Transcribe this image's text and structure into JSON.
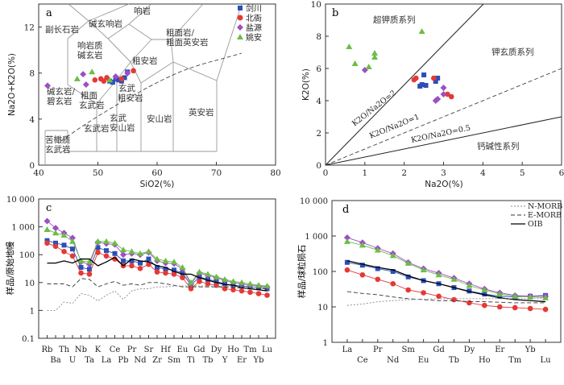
{
  "chart_data": [
    {
      "panel": "a",
      "type": "scatter",
      "xlabel": "SiO2(%)",
      "ylabel": "Na2O+K2O(%)",
      "xlim": [
        40,
        80
      ],
      "ylim": [
        0,
        14
      ],
      "xticks": [
        40,
        50,
        60,
        70,
        80
      ],
      "yticks": [
        0,
        4,
        8,
        12
      ],
      "legend_position": "top-right",
      "field_labels": [
        "响岩",
        "碱玄响岩",
        "副长石岩",
        "响岩质",
        "碱玄岩",
        "粗面岩/",
        "粗面英安岩",
        "粗安岩",
        "碱玄岩/",
        "碧玄岩",
        "粗面",
        "玄武岩",
        "玄武",
        "粗安岩",
        "玄武岩",
        "玄武",
        "安山岩",
        "安山岩",
        "英安岩",
        "苦橄质",
        "玄武岩"
      ],
      "series": [
        {
          "name": "剑川",
          "color": "#2b4fb8",
          "marker": "square",
          "x": [
            52,
            52.5,
            53,
            53.5,
            54,
            54.5,
            55
          ],
          "y": [
            7.3,
            7.2,
            7.5,
            7.4,
            7.3,
            7.6,
            8.1
          ]
        },
        {
          "name": "北衙",
          "color": "#e53935",
          "marker": "circle",
          "x": [
            49.5,
            50.5,
            51,
            51.5,
            54,
            56
          ],
          "y": [
            7.4,
            7.5,
            7.3,
            7.6,
            7.5,
            8.2
          ]
        },
        {
          "name": "盐源",
          "color": "#9c4fc2",
          "marker": "diamond",
          "x": [
            41.5,
            47.5,
            48,
            53,
            55
          ],
          "y": [
            6.9,
            7.9,
            7.0,
            7.7,
            8.0
          ]
        },
        {
          "name": "姚安",
          "color": "#6cbd45",
          "marker": "triangle",
          "x": [
            46.5,
            49,
            52
          ],
          "y": [
            7.5,
            8.1,
            7.4
          ]
        }
      ]
    },
    {
      "panel": "b",
      "type": "scatter",
      "xlabel": "Na2O(%)",
      "ylabel": "K2O(%)",
      "xlim": [
        0,
        6
      ],
      "ylim": [
        0,
        10
      ],
      "xticks": [
        0,
        1,
        2,
        3,
        4,
        5,
        6
      ],
      "yticks": [
        0,
        2,
        4,
        6,
        8,
        10
      ],
      "field_labels": [
        "超钾质系列",
        "钾玄质系列",
        "钙碱性系列"
      ],
      "line_labels": [
        "K2O/Na2O=2",
        "K2O/Na2O=1",
        "K2O/Na2O=0.5"
      ],
      "series": [
        {
          "name": "剑川",
          "marker": "square",
          "x": [
            2.4,
            2.45,
            2.55,
            2.5,
            2.8,
            2.85
          ],
          "y": [
            4.9,
            5.0,
            4.95,
            5.6,
            5.2,
            5.4
          ]
        },
        {
          "name": "北衙",
          "marker": "circle",
          "x": [
            2.25,
            2.3,
            2.75,
            3.1,
            3.2
          ],
          "y": [
            5.3,
            5.4,
            5.4,
            4.4,
            4.25
          ]
        },
        {
          "name": "盐源",
          "marker": "diamond",
          "x": [
            1.0,
            2.8,
            2.85,
            3.0,
            3.0
          ],
          "y": [
            5.9,
            4.0,
            4.1,
            4.4,
            4.8
          ]
        },
        {
          "name": "姚安",
          "marker": "triangle",
          "x": [
            0.6,
            0.75,
            1.1,
            1.25,
            1.25,
            2.45
          ],
          "y": [
            7.35,
            6.3,
            6.1,
            6.95,
            6.7,
            8.3
          ]
        }
      ]
    },
    {
      "panel": "c",
      "type": "line",
      "ylabel": "样品/原始地幔",
      "yscale": "log",
      "ylim": [
        0.1,
        10000
      ],
      "yticks": [
        0.1,
        1,
        10,
        100,
        1000,
        10000
      ],
      "ytick_labels": [
        "0.1",
        "1",
        "10",
        "100",
        "1 000",
        "10 000"
      ],
      "categories": [
        "Rb",
        "Ba",
        "Th",
        "U",
        "Nb",
        "Ta",
        "K",
        "La",
        "Ce",
        "Pb",
        "Pr",
        "Nd",
        "Sr",
        "Zr",
        "Hf",
        "Sm",
        "Eu",
        "Ti",
        "Gd",
        "Tb",
        "Dy",
        "Y",
        "Ho",
        "Er",
        "Tm",
        "Yb",
        "Lu"
      ],
      "xtick_labels": [
        "Rb",
        "Ba",
        "Th",
        "U",
        "Nb",
        "Ta",
        "K",
        "La",
        "Ce",
        "Pb",
        "Pr",
        "Nd",
        "Sr",
        "Zr",
        "Hf",
        "Sm",
        "Eu",
        "Ti",
        "Gd",
        "Tb",
        "Dy",
        "Y",
        "Ho",
        "Er",
        "Tm",
        "Yb",
        "Lu"
      ],
      "series": [
        {
          "name": "剑川",
          "color": "#2b4fb8",
          "values": [
            320,
            260,
            220,
            160,
            35,
            30,
            180,
            140,
            110,
            60,
            60,
            50,
            70,
            35,
            30,
            28,
            22,
            8,
            16,
            13,
            11,
            9,
            8,
            7.5,
            7,
            6.5,
            6
          ]
        },
        {
          "name": "北衙",
          "color": "#e53935",
          "values": [
            260,
            200,
            130,
            90,
            22,
            20,
            120,
            90,
            70,
            40,
            40,
            32,
            45,
            24,
            22,
            20,
            15,
            6,
            11,
            9,
            8,
            6,
            5.5,
            5,
            4.5,
            4,
            3.5
          ]
        },
        {
          "name": "盐源",
          "color": "#9c4fc2",
          "values": [
            1600,
            900,
            600,
            400,
            55,
            45,
            280,
            250,
            230,
            100,
            110,
            100,
            120,
            60,
            50,
            48,
            30,
            9,
            22,
            18,
            15,
            12,
            10,
            9,
            8,
            7.5,
            7
          ]
        },
        {
          "name": "姚安",
          "color": "#6cbd45",
          "values": [
            800,
            600,
            500,
            300,
            60,
            55,
            300,
            300,
            260,
            150,
            130,
            110,
            130,
            70,
            60,
            55,
            35,
            10,
            24,
            20,
            16,
            13,
            11,
            10,
            9,
            8,
            7.5
          ]
        },
        {
          "name": "OIB",
          "color": "#000000",
          "values": [
            50,
            50,
            60,
            50,
            70,
            70,
            40,
            55,
            80,
            40,
            70,
            60,
            55,
            40,
            35,
            25,
            20,
            20,
            15,
            12,
            10,
            8.5,
            8,
            6.5,
            6,
            5.5,
            5
          ]
        },
        {
          "name": "E-MORB",
          "color": "#333333",
          "values": [
            9,
            9,
            9,
            7,
            14,
            13,
            7,
            9,
            11,
            8,
            9,
            8,
            10,
            10,
            9,
            8,
            7,
            7,
            7,
            7,
            7,
            7,
            6.5,
            6.5,
            6,
            6,
            6
          ]
        },
        {
          "name": "N-MORB",
          "color": "#888888",
          "values": [
            1,
            1,
            2,
            1.8,
            4,
            3.5,
            2.2,
            3.5,
            5,
            2.5,
            5,
            6,
            6,
            7,
            7,
            7.5,
            7.5,
            7.5,
            7.5,
            7.5,
            7.5,
            7.5,
            7.2,
            7,
            6.8,
            6.8,
            6.5
          ]
        }
      ]
    },
    {
      "panel": "d",
      "type": "line",
      "ylabel": "样品/球粒陨石",
      "yscale": "log",
      "ylim": [
        1,
        10000
      ],
      "yticks": [
        1,
        10,
        100,
        1000,
        10000
      ],
      "ytick_labels": [
        "1",
        "10",
        "100",
        "1 000",
        "10 000"
      ],
      "categories": [
        "La",
        "Ce",
        "Pr",
        "Nd",
        "Sm",
        "Eu",
        "Gd",
        "Tb",
        "Dy",
        "Ho",
        "Er",
        "Tm",
        "Yb",
        "Lu"
      ],
      "xtick_labels": [
        "La",
        "Ce",
        "Pr",
        "Nd",
        "Sm",
        "Eu",
        "Gd",
        "Tb",
        "Dy",
        "Ho",
        "Er",
        "Tm",
        "Yb",
        "Lu"
      ],
      "legend": [
        "N-MORB",
        "E-MORB",
        "OIB"
      ],
      "legend_position": "top-right",
      "series": [
        {
          "name": "剑川",
          "color": "#2b4fb8",
          "values": [
            180,
            150,
            120,
            100,
            70,
            55,
            45,
            35,
            28,
            23,
            20,
            19,
            20,
            21
          ]
        },
        {
          "name": "北衙",
          "color": "#e53935",
          "values": [
            110,
            80,
            60,
            45,
            30,
            25,
            20,
            16,
            13,
            11,
            10,
            9.5,
            9,
            8.5
          ]
        },
        {
          "name": "盐源",
          "color": "#9c4fc2",
          "values": [
            900,
            650,
            450,
            320,
            180,
            120,
            90,
            65,
            45,
            32,
            25,
            21,
            20,
            20
          ]
        },
        {
          "name": "姚安",
          "color": "#6cbd45",
          "values": [
            700,
            550,
            400,
            280,
            170,
            110,
            80,
            60,
            40,
            30,
            23,
            20,
            19,
            18
          ]
        },
        {
          "name": "OIB",
          "color": "#000000",
          "values": [
            200,
            160,
            130,
            110,
            75,
            55,
            45,
            35,
            27,
            22,
            18,
            16,
            15,
            14
          ]
        },
        {
          "name": "E-MORB",
          "color": "#333333",
          "values": [
            27,
            24,
            22,
            19,
            17,
            16,
            15,
            15,
            14,
            14,
            13.5,
            13,
            13,
            13
          ]
        },
        {
          "name": "N-MORB",
          "color": "#888888",
          "values": [
            11,
            12,
            14,
            15,
            16,
            16.5,
            17,
            17,
            17,
            17,
            17,
            17,
            17,
            17
          ]
        }
      ]
    }
  ],
  "panel_labels": [
    "a",
    "b",
    "c",
    "d"
  ]
}
